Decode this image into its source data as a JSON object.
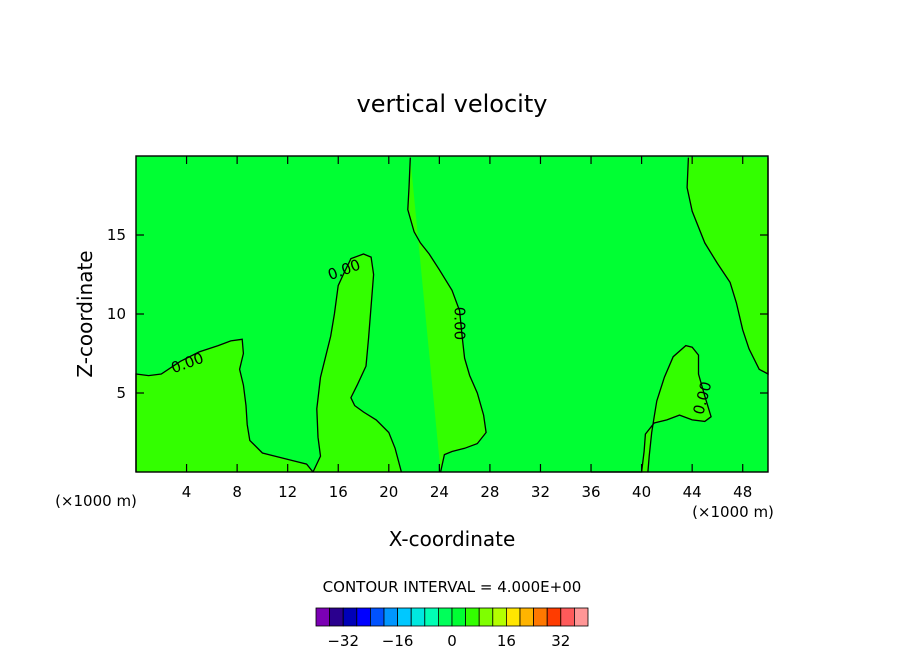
{
  "chart_data": {
    "type": "heatmap",
    "title": "vertical velocity",
    "xlabel": "X-coordinate",
    "ylabel": "Z-coordinate",
    "x_unit_left": "(×1000 m)",
    "x_unit_right": "(×1000 m)",
    "xlim": [
      0,
      50
    ],
    "ylim": [
      0,
      20
    ],
    "x_ticks": [
      4,
      8,
      12,
      16,
      20,
      24,
      28,
      32,
      36,
      40,
      44,
      48
    ],
    "y_ticks": [
      5,
      10,
      15
    ],
    "contour_label": "0.00",
    "contour_interval_text": "CONTOUR INTERVAL = 4.000E+00",
    "background_band_color": "#00ff33",
    "fill_band_color": "#33ff00",
    "colorbar": {
      "colors": [
        "#7b00b4",
        "#2a008e",
        "#0000b8",
        "#0000ff",
        "#0052ff",
        "#0096ff",
        "#00c8ff",
        "#00e8e0",
        "#00ffb4",
        "#00ff5a",
        "#00ff33",
        "#33ff00",
        "#7fff00",
        "#b4ff00",
        "#ffe600",
        "#ffb400",
        "#ff7800",
        "#ff3c00",
        "#ff5a5a",
        "#ff9696"
      ],
      "tick_values": [
        -32,
        -16,
        0,
        16,
        32
      ],
      "tick_labels": [
        "−32",
        "−16",
        "0",
        "16",
        "32"
      ],
      "min": -40,
      "max": 40
    },
    "regions": [
      {
        "name": "left positive region",
        "points": [
          [
            0,
            0
          ],
          [
            0,
            6.2
          ],
          [
            1,
            6.1
          ],
          [
            2,
            6.2
          ],
          [
            3.5,
            7
          ],
          [
            5,
            7.6
          ],
          [
            6.5,
            8
          ],
          [
            7.5,
            8.3
          ],
          [
            8.4,
            8.4
          ],
          [
            8.5,
            7.5
          ],
          [
            8.2,
            6.5
          ],
          [
            8.5,
            5.5
          ],
          [
            8.7,
            4.2
          ],
          [
            8.8,
            3
          ],
          [
            9,
            2
          ],
          [
            10,
            1.2
          ],
          [
            12,
            0.8
          ],
          [
            13.5,
            0.5
          ],
          [
            14,
            0
          ]
        ]
      },
      {
        "name": "central positive region",
        "points": [
          [
            14,
            0
          ],
          [
            14.6,
            1
          ],
          [
            14.4,
            2.2
          ],
          [
            14.3,
            4
          ],
          [
            14.6,
            6
          ],
          [
            15,
            7.3
          ],
          [
            15.4,
            8.6
          ],
          [
            15.7,
            10
          ],
          [
            16,
            11.8
          ],
          [
            16.4,
            12.5
          ],
          [
            17,
            13.5
          ],
          [
            18,
            13.8
          ],
          [
            18.6,
            13.6
          ],
          [
            18.8,
            12.5
          ],
          [
            18.6,
            10.5
          ],
          [
            18.4,
            8.5
          ],
          [
            18.2,
            6.7
          ],
          [
            17.5,
            5.5
          ],
          [
            17,
            4.7
          ],
          [
            17.3,
            4.2
          ],
          [
            18,
            3.8
          ],
          [
            19,
            3.3
          ],
          [
            20,
            2.5
          ],
          [
            20.5,
            1.5
          ],
          [
            21,
            0
          ]
        ]
      },
      {
        "name": "upper central positive region",
        "points": [
          [
            21.7,
            19.9
          ],
          [
            21.6,
            18
          ],
          [
            21.5,
            16.6
          ],
          [
            22,
            15.2
          ],
          [
            22.5,
            14.5
          ],
          [
            23.2,
            13.8
          ],
          [
            24,
            12.8
          ],
          [
            25,
            11.5
          ],
          [
            25.6,
            10.2
          ],
          [
            25.8,
            8.6
          ],
          [
            26,
            7.2
          ],
          [
            26.4,
            6.1
          ],
          [
            27,
            5
          ],
          [
            27.5,
            3.6
          ],
          [
            27.7,
            2.5
          ],
          [
            27,
            1.8
          ],
          [
            26,
            1.5
          ],
          [
            25,
            1.3
          ],
          [
            24.4,
            1.1
          ],
          [
            24.1,
            0
          ]
        ]
      },
      {
        "name": "right positive region",
        "points": [
          [
            36,
            0
          ],
          [
            38,
            0
          ],
          [
            40,
            0
          ],
          [
            40.2,
            1.3
          ],
          [
            40.3,
            2.4
          ],
          [
            41,
            3.1
          ],
          [
            42,
            3.3
          ],
          [
            43,
            3.6
          ],
          [
            44,
            3.3
          ],
          [
            45,
            3.2
          ],
          [
            45.5,
            3.5
          ],
          [
            45,
            4.8
          ],
          [
            44.5,
            6.2
          ],
          [
            44.5,
            7.4
          ],
          [
            44,
            7.9
          ],
          [
            43.5,
            8
          ],
          [
            42.5,
            7.3
          ],
          [
            41.8,
            6
          ],
          [
            41.2,
            4.5
          ],
          [
            41,
            3.5
          ],
          [
            40.8,
            2.5
          ],
          [
            40.6,
            1
          ],
          [
            40.5,
            0
          ]
        ]
      },
      {
        "name": "upper right positive region",
        "points": [
          [
            43.7,
            19.9
          ],
          [
            43.6,
            18
          ],
          [
            44,
            16.5
          ],
          [
            45,
            14.5
          ],
          [
            46,
            13.2
          ],
          [
            47,
            12
          ],
          [
            47.5,
            10.7
          ],
          [
            48,
            9
          ],
          [
            48.5,
            7.8
          ],
          [
            49.3,
            6.5
          ],
          [
            50,
            6.2
          ],
          [
            50,
            19.9
          ]
        ]
      }
    ]
  },
  "contour_label_positions": [
    [
      4.2,
      6.6
    ],
    [
      16.6,
      12.5
    ],
    [
      25.2,
      9.4
    ],
    [
      45.2,
      4.6
    ]
  ]
}
